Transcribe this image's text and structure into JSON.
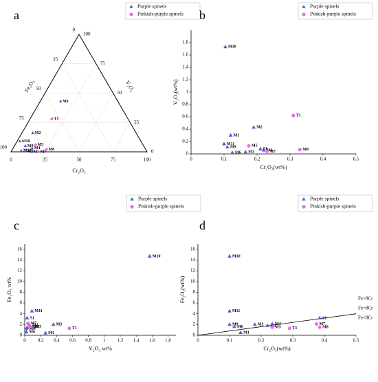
{
  "chart_data": [
    {
      "type": "ternary",
      "panel_label": "a",
      "left_label": "Fe₂O₃",
      "right_label": "V₂O₃",
      "bottom_label": "Cr₂O₃",
      "fe_ticks": [
        0,
        25,
        50,
        75,
        100
      ],
      "v_ticks": [
        0,
        25,
        50,
        75,
        100
      ],
      "cr_ticks": [
        0,
        25,
        50,
        75,
        100
      ],
      "grid": true,
      "series": [
        {
          "name": "Purple spinels",
          "color": "#5a5ad2",
          "marker": "triangle",
          "labels": [
            "M1",
            "M2",
            "M10",
            "M9",
            "M4",
            "M11",
            "M6",
            "M3"
          ],
          "fe": [
            42,
            76,
            89,
            87,
            83,
            92,
            89,
            85
          ],
          "v": [
            43,
            16,
            9,
            5,
            3,
            1,
            1,
            0
          ],
          "cr": [
            15,
            8,
            2,
            8,
            14,
            7,
            10,
            15
          ]
        },
        {
          "name": "Pinkish-purple spinels",
          "color": "#e86ee8",
          "marker": "circle",
          "labels": [
            "T1",
            "M5",
            "M7",
            "M8"
          ],
          "fe": [
            56,
            79,
            80,
            73
          ],
          "v": [
            28,
            6,
            0,
            2
          ],
          "cr": [
            16,
            15,
            20,
            25
          ]
        }
      ]
    },
    {
      "type": "scatter",
      "panel_label": "b",
      "x_label": "Cr₂O₃(wt%)",
      "y_label": "V₂O₃(wt%)",
      "xlim": [
        0,
        0.5
      ],
      "xticks": [
        0,
        0.1,
        0.2,
        0.3,
        0.4,
        0.5
      ],
      "ylim": [
        0,
        2
      ],
      "yticks": [
        0,
        0.2,
        0.4,
        0.6,
        0.8,
        1,
        1.2,
        1.4,
        1.6,
        1.8
      ],
      "series": [
        {
          "name": "Purple spinels",
          "color": "#5a5ad2",
          "marker": "triangle",
          "labels": [
            "M10",
            "M2",
            "M1",
            "M11",
            "M9",
            "M6",
            "M3",
            "M4",
            "S1"
          ],
          "x": [
            0.104,
            0.19,
            0.12,
            0.1,
            0.11,
            0.125,
            0.165,
            0.22,
            0.21
          ],
          "y": [
            1.73,
            0.43,
            0.3,
            0.16,
            0.11,
            0.02,
            0.03,
            0.06,
            0.08
          ]
        },
        {
          "name": "Pinkish-purple spinels",
          "color": "#e86ee8",
          "marker": "circle",
          "labels": [
            "T1",
            "M5",
            "M7",
            "M8"
          ],
          "x": [
            0.31,
            0.175,
            0.23,
            0.33
          ],
          "y": [
            0.62,
            0.13,
            0.04,
            0.07
          ]
        }
      ]
    },
    {
      "type": "scatter",
      "panel_label": "c",
      "x_label": "V₂O₃ wt%",
      "y_label": "Fe₂O₃ wt%",
      "xlim": [
        0,
        1.9
      ],
      "xticks": [
        0,
        0.2,
        0.4,
        0.6,
        0.8,
        1,
        1.2,
        1.4,
        1.6,
        1.8
      ],
      "ylim": [
        0,
        17
      ],
      "yticks": [
        0,
        2,
        4,
        6,
        8,
        10,
        12,
        14,
        16
      ],
      "series": [
        {
          "name": "Purple spinels",
          "color": "#5a5ad2",
          "marker": "triangle",
          "labels": [
            "M10",
            "M11",
            "S1",
            "M2",
            "M1",
            "M4",
            "M3",
            "M9",
            "M6"
          ],
          "x": [
            1.57,
            0.09,
            0.03,
            0.36,
            0.26,
            0.06,
            0.03,
            0.02,
            0.02
          ],
          "y": [
            14.7,
            4.5,
            3.2,
            2,
            0.4,
            1.9,
            1.4,
            1.2,
            0.6
          ]
        },
        {
          "name": "Pinkish-purple spinels",
          "color": "#e86ee8",
          "marker": "circle",
          "labels": [
            "T1",
            "M7",
            "M5",
            "M8"
          ],
          "x": [
            0.56,
            0.04,
            0.1,
            0.06
          ],
          "y": [
            1.3,
            2.2,
            1.6,
            1.6
          ]
        }
      ]
    },
    {
      "type": "scatter",
      "panel_label": "d",
      "x_label": "Cr₂O₃(wt%)",
      "y_label": "Fe₂O₃(wt%)",
      "xlim": [
        0,
        0.5
      ],
      "xticks": [
        0,
        0.1,
        0.2,
        0.3,
        0.4,
        0.5
      ],
      "ylim": [
        0,
        17
      ],
      "yticks": [
        0,
        2,
        4,
        6,
        8,
        10,
        12,
        14,
        16
      ],
      "reference_line": {
        "x": [
          0,
          0.5
        ],
        "y": [
          0,
          4
        ]
      },
      "annotations": [
        "Fe>8Cr",
        "Fe=8Cr",
        "Fe<8Cr"
      ],
      "series": [
        {
          "name": "Purple spinels",
          "color": "#5a5ad2",
          "marker": "triangle",
          "labels": [
            "M10",
            "M11",
            "M9",
            "M6",
            "M2",
            "M3",
            "M4",
            "M1",
            "S1"
          ],
          "x": [
            0.1,
            0.1,
            0.1,
            0.115,
            0.18,
            0.22,
            0.235,
            0.135,
            0.385
          ],
          "y": [
            14.7,
            4.5,
            2,
            1.6,
            2,
            1.8,
            2.1,
            0.5,
            3.2
          ]
        },
        {
          "name": "Pinkish-purple spinels",
          "color": "#e86ee8",
          "marker": "circle",
          "labels": [
            "M5",
            "T1",
            "M7",
            "M8"
          ],
          "x": [
            0.235,
            0.29,
            0.375,
            0.385
          ],
          "y": [
            1.5,
            1.3,
            2.1,
            1.5
          ]
        }
      ]
    }
  ]
}
